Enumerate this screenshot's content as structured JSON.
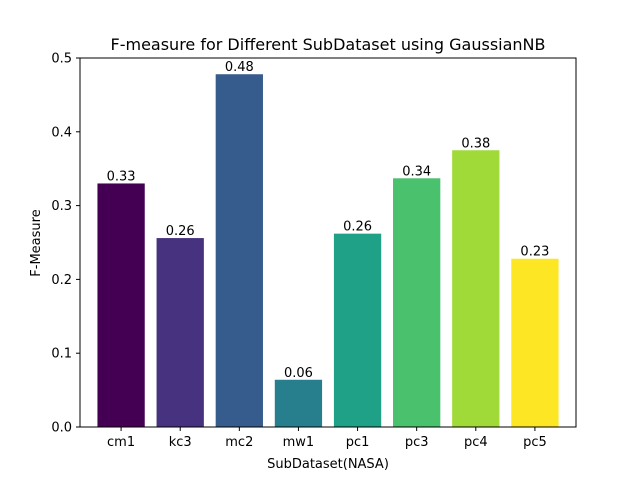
{
  "chart_data": {
    "type": "bar",
    "title": "F-measure for Different SubDataset using GaussianNB",
    "xlabel": "SubDataset(NASA)",
    "ylabel": "F-Measure",
    "categories": [
      "cm1",
      "kc3",
      "mc2",
      "mw1",
      "pc1",
      "pc3",
      "pc4",
      "pc5"
    ],
    "values": [
      0.33,
      0.256,
      0.478,
      0.064,
      0.262,
      0.337,
      0.375,
      0.228
    ],
    "data_labels": [
      "0.33",
      "0.26",
      "0.48",
      "0.06",
      "0.26",
      "0.34",
      "0.38",
      "0.23"
    ],
    "colors": [
      "#440154",
      "#46327e",
      "#365c8d",
      "#277f8e",
      "#1fa187",
      "#4ac16d",
      "#a0da39",
      "#fde725"
    ],
    "ylim": [
      0,
      0.5
    ],
    "yticks": [
      0.0,
      0.1,
      0.2,
      0.3,
      0.4,
      0.5
    ],
    "ytick_labels": [
      "0.0",
      "0.1",
      "0.2",
      "0.3",
      "0.4",
      "0.5"
    ],
    "grid": false,
    "legend": "none"
  }
}
